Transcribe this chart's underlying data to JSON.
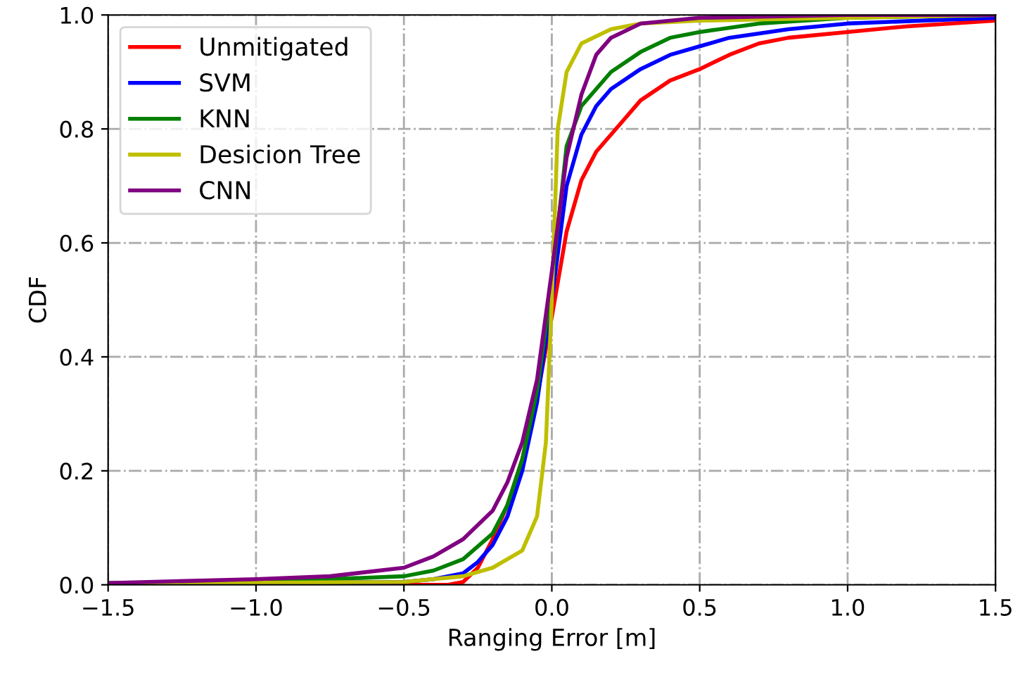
{
  "chart_data": {
    "type": "line",
    "xlabel": "Ranging Error [m]",
    "ylabel": "CDF",
    "xlim": [
      -1.5,
      1.5
    ],
    "ylim": [
      0,
      1
    ],
    "xticks": [
      {
        "value": -1.5,
        "label": "−1.5"
      },
      {
        "value": -1.0,
        "label": "−1.0"
      },
      {
        "value": -0.5,
        "label": "−0.5"
      },
      {
        "value": 0,
        "label": "0.0"
      },
      {
        "value": 0.5,
        "label": "0.5"
      },
      {
        "value": 1.0,
        "label": "1.0"
      },
      {
        "value": 1.5,
        "label": "1.5"
      }
    ],
    "yticks": [
      {
        "value": 0,
        "label": "0.0"
      },
      {
        "value": 0.2,
        "label": "0.2"
      },
      {
        "value": 0.4,
        "label": "0.4"
      },
      {
        "value": 0.6,
        "label": "0.6"
      },
      {
        "value": 0.8,
        "label": "0.8"
      },
      {
        "value": 1.0,
        "label": "1.0"
      }
    ],
    "grid": true,
    "legend": "top left",
    "line_style": "solid",
    "marker": "none",
    "series": [
      {
        "name": "Unmitigated",
        "color": "#ff0000",
        "x": [
          -1.5,
          -0.35,
          -0.3,
          -0.25,
          -0.2,
          -0.15,
          -0.1,
          -0.05,
          0,
          0.05,
          0.1,
          0.15,
          0.2,
          0.25,
          0.3,
          0.4,
          0.5,
          0.6,
          0.7,
          0.8,
          1.0,
          1.2,
          1.5
        ],
        "values": [
          0.0,
          0.0,
          0.005,
          0.03,
          0.08,
          0.14,
          0.22,
          0.33,
          0.47,
          0.62,
          0.71,
          0.76,
          0.79,
          0.82,
          0.85,
          0.885,
          0.905,
          0.93,
          0.95,
          0.96,
          0.97,
          0.98,
          0.99
        ]
      },
      {
        "name": "SVM",
        "color": "#0000ff",
        "x": [
          -1.5,
          -0.5,
          -0.4,
          -0.3,
          -0.25,
          -0.2,
          -0.15,
          -0.1,
          -0.05,
          0,
          0.05,
          0.1,
          0.15,
          0.2,
          0.3,
          0.4,
          0.5,
          0.6,
          0.8,
          1.0,
          1.5
        ],
        "values": [
          0.002,
          0.005,
          0.01,
          0.02,
          0.04,
          0.07,
          0.12,
          0.2,
          0.32,
          0.5,
          0.7,
          0.79,
          0.84,
          0.87,
          0.905,
          0.93,
          0.945,
          0.96,
          0.975,
          0.985,
          0.995
        ]
      },
      {
        "name": "KNN",
        "color": "#008000",
        "x": [
          -1.5,
          -1.0,
          -0.5,
          -0.4,
          -0.3,
          -0.2,
          -0.15,
          -0.1,
          -0.05,
          0,
          0.05,
          0.1,
          0.2,
          0.3,
          0.4,
          0.5,
          0.7,
          1.0,
          1.5
        ],
        "values": [
          0.003,
          0.005,
          0.015,
          0.025,
          0.045,
          0.09,
          0.14,
          0.22,
          0.34,
          0.53,
          0.77,
          0.84,
          0.9,
          0.935,
          0.96,
          0.97,
          0.985,
          0.995,
          1.0
        ]
      },
      {
        "name": "Desicion Tree",
        "color": "#bfbf00",
        "x": [
          -1.5,
          -0.5,
          -0.3,
          -0.2,
          -0.1,
          -0.05,
          -0.02,
          0,
          0.02,
          0.05,
          0.1,
          0.2,
          0.3,
          0.5,
          1.0,
          1.5
        ],
        "values": [
          0.002,
          0.005,
          0.015,
          0.03,
          0.06,
          0.12,
          0.25,
          0.5,
          0.8,
          0.9,
          0.95,
          0.975,
          0.985,
          0.99,
          0.995,
          1.0
        ]
      },
      {
        "name": "CNN",
        "color": "#800080",
        "x": [
          -1.5,
          -1.0,
          -0.75,
          -0.5,
          -0.4,
          -0.3,
          -0.2,
          -0.15,
          -0.1,
          -0.05,
          0,
          0.05,
          0.1,
          0.15,
          0.2,
          0.3,
          0.5,
          1.0,
          1.5
        ],
        "values": [
          0.003,
          0.01,
          0.015,
          0.03,
          0.05,
          0.08,
          0.13,
          0.18,
          0.25,
          0.36,
          0.55,
          0.75,
          0.86,
          0.93,
          0.96,
          0.985,
          0.995,
          1.0,
          1.0
        ]
      }
    ]
  }
}
